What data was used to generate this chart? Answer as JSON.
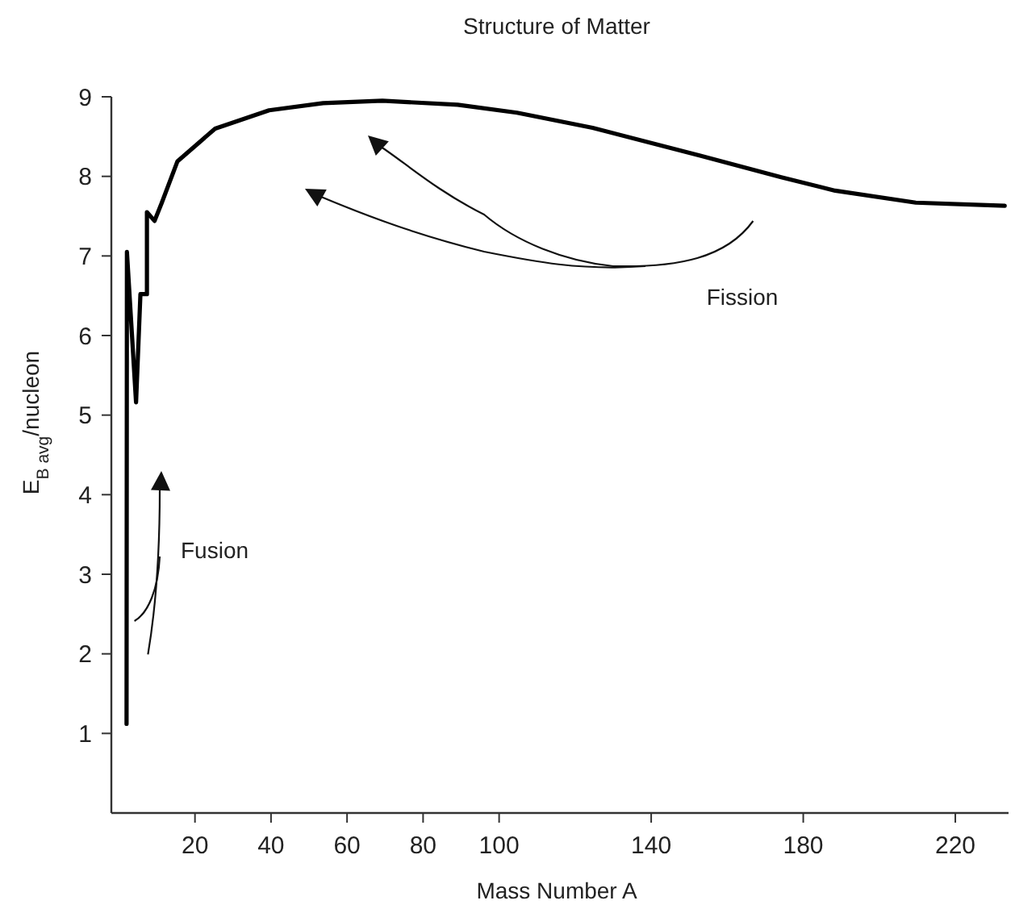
{
  "chart_data": {
    "type": "line",
    "title": "Structure of Matter",
    "xlabel": "Mass Number A",
    "ylabel": "E$_{B avg}$/nucleon",
    "xlim": [
      -2,
      234
    ],
    "ylim": [
      0,
      9
    ],
    "xticks": [
      20,
      40,
      60,
      80,
      100,
      140,
      180,
      220
    ],
    "yticks": [
      1,
      2,
      3,
      4,
      5,
      6,
      7,
      8,
      9
    ],
    "marker": "none",
    "line_style": "solid",
    "annotations": [
      "Fusion",
      "Fission"
    ],
    "series": [
      {
        "color": "#000000",
        "x": [
          2,
          2.1,
          4.5,
          5.65,
          7.36,
          7.36,
          9.35,
          11.2,
          15.4,
          25.3,
          39.5,
          53.7,
          69.3,
          89.1,
          104.7,
          124.6,
          152.9,
          174.2,
          188.4,
          209.6,
          233
        ],
        "values": [
          1.12,
          7.05,
          5.16,
          6.52,
          6.52,
          7.55,
          7.44,
          7.66,
          8.19,
          8.6,
          8.83,
          8.92,
          8.95,
          8.9,
          8.8,
          8.61,
          8.26,
          7.99,
          7.82,
          7.67,
          7.63
        ]
      }
    ]
  }
}
